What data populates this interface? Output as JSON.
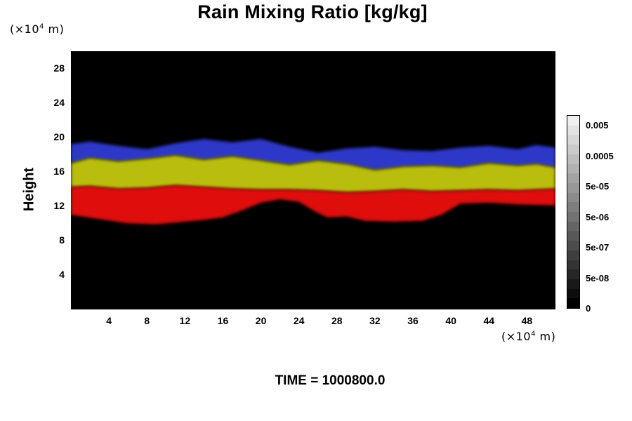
{
  "chart_data": {
    "type": "heatmap",
    "title": "Rain Mixing Ratio [kg/kg]",
    "ylabel": "Height",
    "x_unit_label": "(×10",
    "x_unit_exp": "4",
    "x_unit_suffix": " m)",
    "y_unit_label": "(×10",
    "y_unit_exp": "4",
    "y_unit_suffix": " m)",
    "xlim": [
      0,
      51
    ],
    "ylim": [
      0,
      30
    ],
    "x_ticks": [
      "4",
      "8",
      "12",
      "16",
      "20",
      "24",
      "28",
      "32",
      "36",
      "40",
      "44",
      "48"
    ],
    "y_ticks": [
      "4",
      "8",
      "12",
      "16",
      "20",
      "24",
      "28"
    ],
    "colorbar_labels": [
      "0.005",
      "0.0005",
      "5e-05",
      "5e-06",
      "5e-07",
      "5e-08",
      "0"
    ],
    "colorbar_levels": 20,
    "layers": [
      {
        "color": "#2d37c8",
        "profile": [
          [
            0,
            19.2
          ],
          [
            2,
            19.5
          ],
          [
            5,
            19.0
          ],
          [
            8,
            18.6
          ],
          [
            11,
            19.3
          ],
          [
            14,
            19.8
          ],
          [
            17,
            19.4
          ],
          [
            20,
            19.8
          ],
          [
            23,
            18.9
          ],
          [
            26,
            18.2
          ],
          [
            29,
            18.7
          ],
          [
            32,
            18.9
          ],
          [
            35,
            18.5
          ],
          [
            38,
            18.4
          ],
          [
            41,
            18.8
          ],
          [
            44,
            19.0
          ],
          [
            47,
            18.6
          ],
          [
            49,
            19.1
          ],
          [
            51,
            18.8
          ]
        ]
      },
      {
        "color": "#b9bd10",
        "profile": [
          [
            0,
            17.0
          ],
          [
            2,
            17.6
          ],
          [
            5,
            17.2
          ],
          [
            8,
            17.5
          ],
          [
            11,
            17.9
          ],
          [
            14,
            17.4
          ],
          [
            17,
            17.8
          ],
          [
            20,
            17.3
          ],
          [
            23,
            16.8
          ],
          [
            26,
            17.3
          ],
          [
            29,
            16.9
          ],
          [
            32,
            16.2
          ],
          [
            35,
            16.6
          ],
          [
            38,
            16.7
          ],
          [
            41,
            16.5
          ],
          [
            44,
            17.0
          ],
          [
            47,
            16.7
          ],
          [
            49,
            16.9
          ],
          [
            51,
            16.5
          ]
        ]
      },
      {
        "color": "#e01010",
        "profile": [
          [
            0,
            14.2
          ],
          [
            2,
            14.3
          ],
          [
            5,
            14.0
          ],
          [
            8,
            14.1
          ],
          [
            11,
            14.4
          ],
          [
            14,
            14.2
          ],
          [
            17,
            14.0
          ],
          [
            20,
            13.9
          ],
          [
            23,
            13.9
          ],
          [
            26,
            13.8
          ],
          [
            29,
            13.6
          ],
          [
            32,
            13.7
          ],
          [
            35,
            13.9
          ],
          [
            38,
            13.7
          ],
          [
            41,
            13.8
          ],
          [
            44,
            13.9
          ],
          [
            47,
            13.8
          ],
          [
            49,
            13.9
          ],
          [
            51,
            14.0
          ]
        ]
      }
    ],
    "red_base": [
      [
        0,
        11.0
      ],
      [
        3,
        10.5
      ],
      [
        6,
        10.0
      ],
      [
        9,
        9.9
      ],
      [
        12,
        10.2
      ],
      [
        14,
        10.4
      ],
      [
        16,
        10.7
      ],
      [
        18,
        11.5
      ],
      [
        20,
        12.4
      ],
      [
        22,
        12.8
      ],
      [
        24,
        12.5
      ],
      [
        26,
        11.2
      ],
      [
        27,
        10.7
      ],
      [
        29,
        10.8
      ],
      [
        31,
        10.3
      ],
      [
        34,
        10.2
      ],
      [
        37,
        10.3
      ],
      [
        39,
        11.0
      ],
      [
        41,
        12.3
      ],
      [
        44,
        12.4
      ],
      [
        47,
        12.2
      ],
      [
        51,
        12.1
      ]
    ],
    "time_label": "TIME = 1000800.0"
  }
}
